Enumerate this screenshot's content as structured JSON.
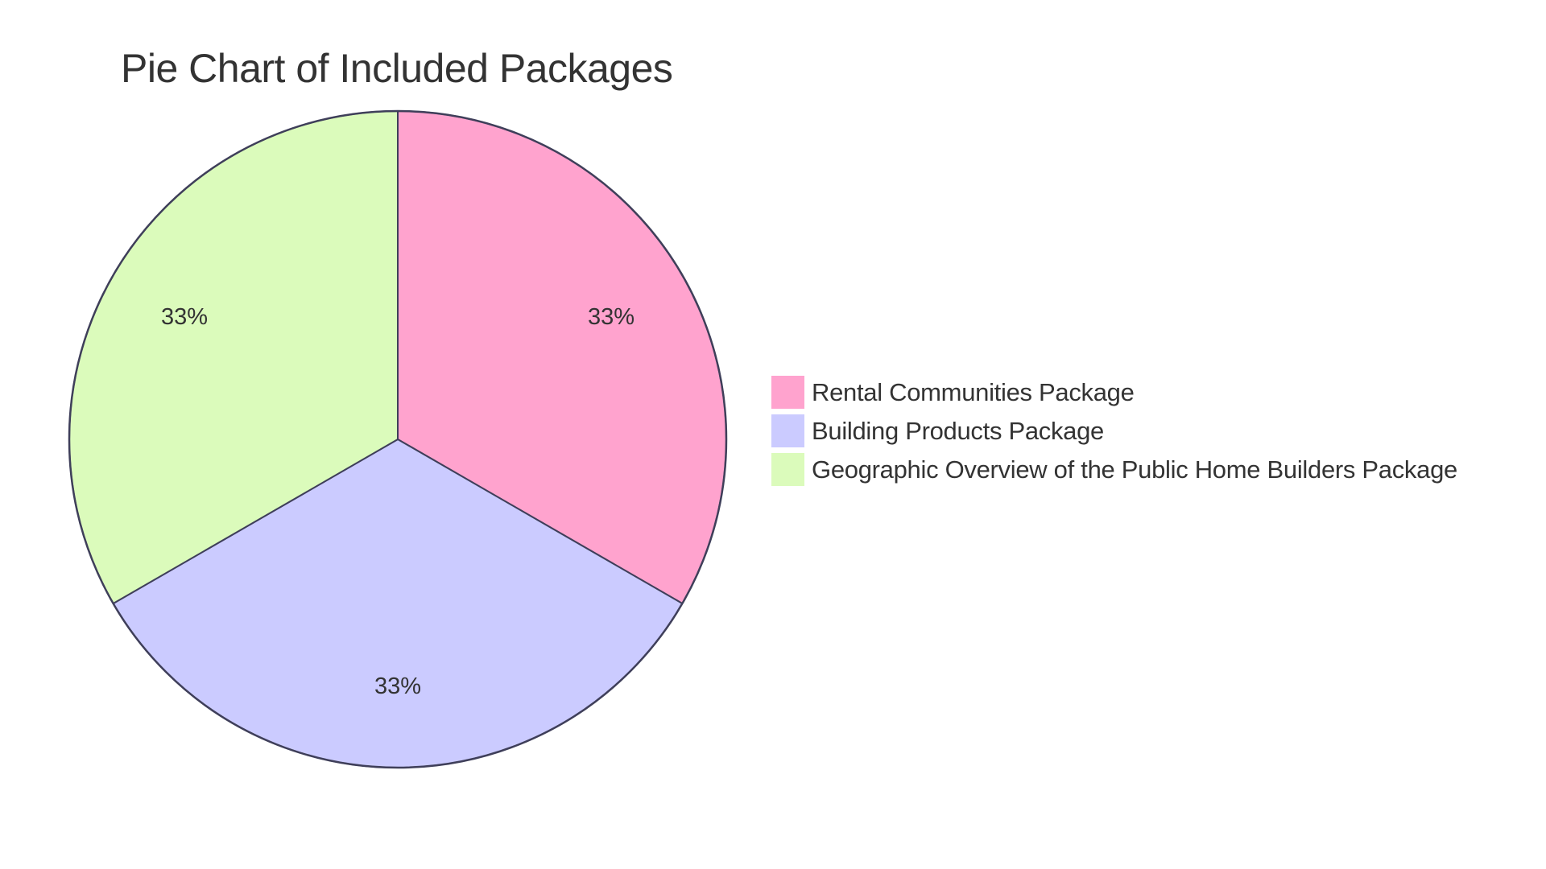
{
  "chart_data": {
    "type": "pie",
    "title": "Pie Chart of Included Packages",
    "categories": [
      "Rental Communities Package",
      "Building Products Package",
      "Geographic Overview of the Public Home Builders Package"
    ],
    "values": [
      33.33,
      33.33,
      33.33
    ],
    "labels": [
      "33%",
      "33%",
      "33%"
    ],
    "colors": [
      "#ffa3ce",
      "#cbcbff",
      "#dbfbbb"
    ],
    "stroke_color": "#3f3f5a",
    "legend_position": "right"
  },
  "title": "Pie Chart of Included Packages",
  "slices": [
    {
      "label": "33%",
      "name": "Rental Communities Package",
      "color": "#ffa3ce"
    },
    {
      "label": "33%",
      "name": "Building Products Package",
      "color": "#cbcbff"
    },
    {
      "label": "33%",
      "name": "Geographic Overview of the Public Home Builders Package",
      "color": "#dbfbbb"
    }
  ],
  "legend": {
    "items": [
      {
        "label": "Rental Communities Package",
        "color": "#ffa3ce"
      },
      {
        "label": "Building Products Package",
        "color": "#cbcbff"
      },
      {
        "label": "Geographic Overview of the Public Home Builders Package",
        "color": "#dbfbbb"
      }
    ]
  }
}
